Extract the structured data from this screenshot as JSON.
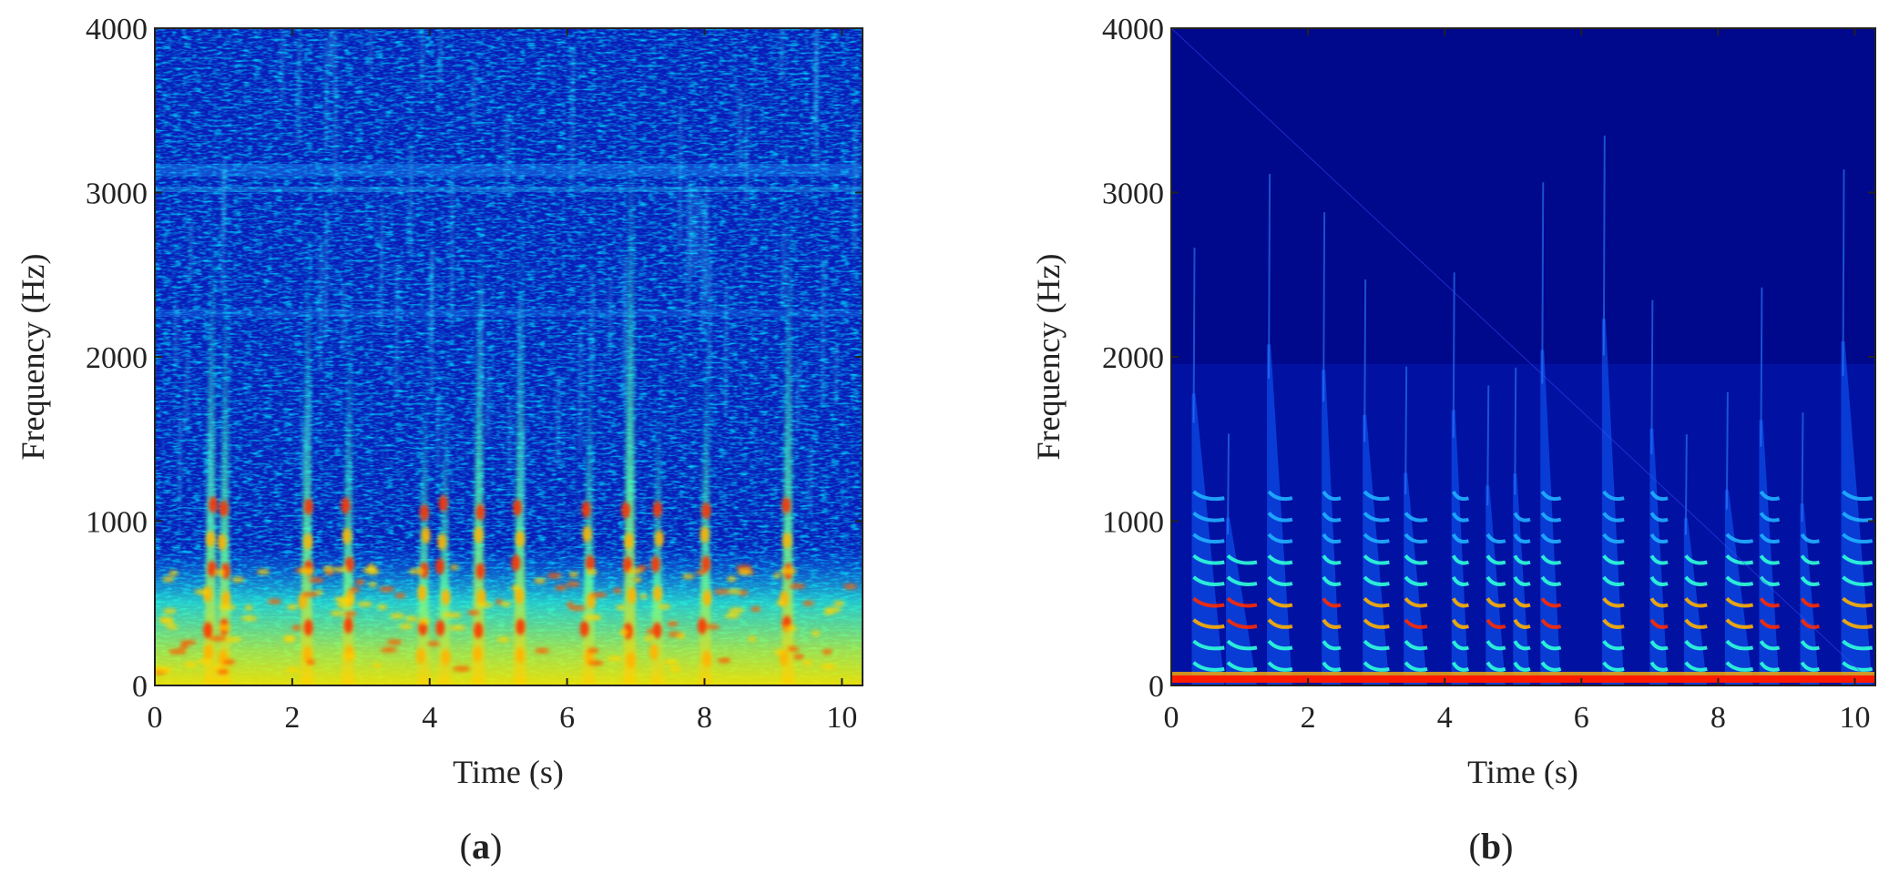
{
  "figure": {
    "panel_labels": [
      {
        "open": "(",
        "letter": "a",
        "close": ")"
      },
      {
        "open": "(",
        "letter": "b",
        "close": ")"
      }
    ]
  },
  "chart_data": [
    {
      "type": "heatmap",
      "panel": "(a)",
      "xlabel": "Time (s)",
      "ylabel": "Frequency (Hz)",
      "xlim": [
        0,
        10.3
      ],
      "ylim": [
        0,
        4000
      ],
      "xticks": [
        0,
        2,
        4,
        6,
        8,
        10
      ],
      "yticks": [
        0,
        1000,
        2000,
        3000,
        4000
      ],
      "grid": false,
      "colormap": "jet",
      "colors": {
        "low": "#00008f",
        "mid": "#00ffff",
        "high": "#ff0000"
      },
      "description_values": {
        "noise_floor_band_hz": [
          0,
          850
        ],
        "harmonic_bursts_s": [
          0.8,
          1.0,
          2.2,
          2.8,
          3.9,
          4.2,
          4.7,
          5.3,
          6.3,
          6.9,
          7.3,
          8.0,
          9.2
        ]
      }
    },
    {
      "type": "heatmap",
      "panel": "(b)",
      "xlabel": "Time (s)",
      "ylabel": "Frequency (Hz)",
      "xlim": [
        0,
        10.3
      ],
      "ylim": [
        0,
        4000
      ],
      "xticks": [
        0,
        2,
        4,
        6,
        8,
        10
      ],
      "yticks": [
        0,
        1000,
        2000,
        3000,
        4000
      ],
      "grid": false,
      "colormap": "jet",
      "colors": {
        "low": "#00008f",
        "mid": "#00ffff",
        "high": "#ff0000"
      },
      "description_values": {
        "dc_line_hz": 40,
        "harmonic_bursts_s": [
          0.3,
          0.8,
          1.4,
          2.2,
          2.8,
          3.4,
          4.1,
          4.6,
          5.0,
          5.4,
          6.3,
          7.0,
          7.5,
          8.1,
          8.6,
          9.2,
          9.8
        ]
      }
    }
  ]
}
